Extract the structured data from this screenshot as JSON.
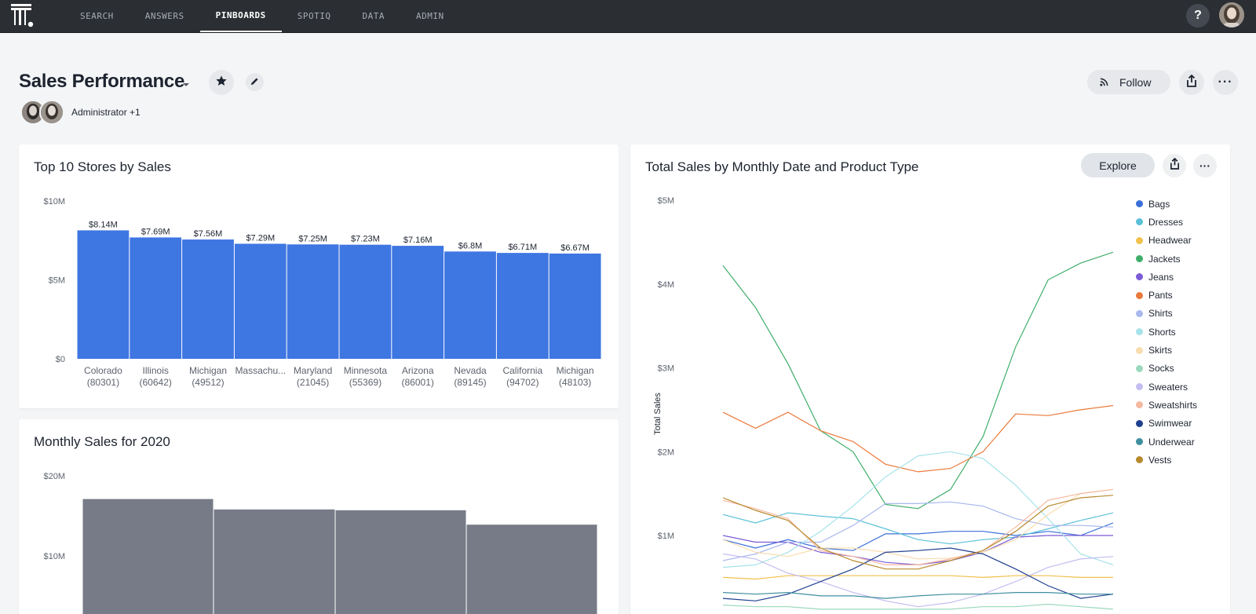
{
  "nav": {
    "items": [
      {
        "label": "SEARCH",
        "active": false
      },
      {
        "label": "ANSWERS",
        "active": false
      },
      {
        "label": "PINBOARDS",
        "active": true
      },
      {
        "label": "SPOTIQ",
        "active": false
      },
      {
        "label": "DATA",
        "active": false
      },
      {
        "label": "ADMIN",
        "active": false
      }
    ],
    "help_label": "?"
  },
  "header": {
    "title": "Sales Performance",
    "authors_text": "Administrator +1",
    "follow_label": "Follow",
    "more_label": "···"
  },
  "cards": {
    "top_stores": {
      "title": "Top 10 Stores by Sales"
    },
    "monthly": {
      "title": "Monthly Sales for 2020"
    },
    "product": {
      "title": "Total Sales by Monthly Date and Product Type",
      "explore_label": "Explore",
      "more_label": "···"
    }
  },
  "colors": {
    "bar_blue": "#3e76e2",
    "bar_gray": "#767b87",
    "nav_bg": "#2b2e33",
    "page_bg": "#f4f5f7"
  },
  "chart_data": [
    {
      "id": "top_stores",
      "type": "bar",
      "title": "Top 10 Stores by Sales",
      "categories": [
        [
          "Colorado",
          "(80301)"
        ],
        [
          "Illinois",
          "(60642)"
        ],
        [
          "Michigan",
          "(49512)"
        ],
        [
          "Massachu...",
          ""
        ],
        [
          "Maryland",
          "(21045)"
        ],
        [
          "Minnesota",
          "(55369)"
        ],
        [
          "Arizona",
          "(86001)"
        ],
        [
          "Nevada",
          "(89145)"
        ],
        [
          "California",
          "(94702)"
        ],
        [
          "Michigan",
          "(48103)"
        ]
      ],
      "values": [
        8.14,
        7.69,
        7.56,
        7.29,
        7.25,
        7.23,
        7.16,
        6.8,
        6.71,
        6.67
      ],
      "data_labels": [
        "$8.14M",
        "$7.69M",
        "$7.56M",
        "$7.29M",
        "$7.25M",
        "$7.23M",
        "$7.16M",
        "$6.8M",
        "$6.71M",
        "$6.67M"
      ],
      "unit": "millions USD",
      "ylim": [
        0,
        10
      ],
      "yticks": [
        {
          "value": 0,
          "label": "$0"
        },
        {
          "value": 5,
          "label": "$5M"
        },
        {
          "value": 10,
          "label": "$10M"
        }
      ],
      "color": "#3e76e2",
      "grid": false
    },
    {
      "id": "monthly",
      "type": "bar",
      "title": "Monthly Sales for 2020",
      "values": [
        17.1,
        15.8,
        15.7,
        13.9
      ],
      "unit": "millions USD",
      "ylim": [
        0,
        20
      ],
      "yticks": [
        {
          "value": 10,
          "label": "$10M"
        },
        {
          "value": 20,
          "label": "$20M"
        }
      ],
      "color": "#767b87",
      "grid": false
    },
    {
      "id": "product",
      "type": "line",
      "title": "Total Sales by Monthly Date and Product Type",
      "ylabel": "Total Sales",
      "unit": "millions USD",
      "ylim": [
        0,
        5
      ],
      "yticks": [
        {
          "value": 1,
          "label": "$1M"
        },
        {
          "value": 2,
          "label": "$2M"
        },
        {
          "value": 3,
          "label": "$3M"
        },
        {
          "value": 4,
          "label": "$4M"
        },
        {
          "value": 5,
          "label": "$5M"
        }
      ],
      "legend": "right",
      "series": [
        {
          "name": "Bags",
          "color": "#3a6fd8",
          "values": [
            0.95,
            0.85,
            0.95,
            0.85,
            0.82,
            1.02,
            1.02,
            1.05,
            1.05,
            1.0,
            1.05,
            1.0,
            1.15
          ]
        },
        {
          "name": "Dresses",
          "color": "#5bc0d8",
          "values": [
            1.25,
            1.15,
            1.27,
            1.23,
            1.2,
            1.08,
            0.95,
            0.9,
            0.95,
            0.98,
            1.08,
            1.18,
            1.27
          ]
        },
        {
          "name": "Headwear",
          "color": "#f2c14e",
          "values": [
            0.5,
            0.48,
            0.52,
            0.52,
            0.52,
            0.52,
            0.52,
            0.52,
            0.5,
            0.52,
            0.52,
            0.5,
            0.5
          ]
        },
        {
          "name": "Jackets",
          "color": "#3fae6a",
          "values": [
            4.22,
            3.72,
            3.05,
            2.25,
            2.0,
            1.37,
            1.32,
            1.55,
            2.18,
            3.25,
            4.05,
            4.25,
            4.38
          ]
        },
        {
          "name": "Jeans",
          "color": "#7a5bd6",
          "values": [
            1.0,
            0.92,
            0.92,
            0.8,
            0.75,
            0.68,
            0.65,
            0.7,
            0.8,
            0.98,
            1.0,
            1.0,
            1.0
          ]
        },
        {
          "name": "Pants",
          "color": "#ea7a3c",
          "values": [
            2.47,
            2.28,
            2.47,
            2.25,
            2.12,
            1.85,
            1.76,
            1.8,
            2.0,
            2.45,
            2.43,
            2.5,
            2.55
          ]
        },
        {
          "name": "Shirts",
          "color": "#a9b9ee",
          "values": [
            0.7,
            0.78,
            0.92,
            0.92,
            1.12,
            1.38,
            1.38,
            1.4,
            1.35,
            1.2,
            1.12,
            1.12,
            1.1
          ]
        },
        {
          "name": "Shorts",
          "color": "#a6e3ea",
          "values": [
            0.62,
            0.65,
            0.8,
            1.05,
            1.35,
            1.7,
            1.95,
            2.0,
            1.92,
            1.6,
            1.2,
            0.78,
            0.65
          ]
        },
        {
          "name": "Skirts",
          "color": "#f8ddb0",
          "values": [
            0.95,
            0.8,
            0.75,
            0.85,
            0.85,
            0.8,
            0.72,
            0.73,
            0.8,
            0.95,
            1.25,
            1.5,
            1.55
          ]
        },
        {
          "name": "Socks",
          "color": "#9bd9bd",
          "values": [
            0.17,
            0.15,
            0.15,
            0.12,
            0.12,
            0.12,
            0.12,
            0.12,
            0.15,
            0.15,
            0.18,
            0.15,
            0.12
          ]
        },
        {
          "name": "Sweaters",
          "color": "#c3bdf0",
          "values": [
            0.78,
            0.72,
            0.55,
            0.45,
            0.32,
            0.22,
            0.15,
            0.2,
            0.3,
            0.45,
            0.62,
            0.72,
            0.75
          ]
        },
        {
          "name": "Sweatshirts",
          "color": "#f6b8a0",
          "values": [
            1.42,
            1.32,
            1.2,
            0.82,
            0.75,
            0.65,
            0.65,
            0.72,
            0.82,
            1.1,
            1.42,
            1.5,
            1.55
          ]
        },
        {
          "name": "Swimwear",
          "color": "#1f3f8f",
          "values": [
            0.25,
            0.22,
            0.3,
            0.45,
            0.6,
            0.8,
            0.82,
            0.85,
            0.78,
            0.6,
            0.4,
            0.25,
            0.3
          ]
        },
        {
          "name": "Underwear",
          "color": "#3f8f9f",
          "values": [
            0.32,
            0.3,
            0.32,
            0.28,
            0.28,
            0.25,
            0.28,
            0.3,
            0.3,
            0.32,
            0.32,
            0.3,
            0.3
          ]
        },
        {
          "name": "Vests",
          "color": "#b88a2e",
          "values": [
            1.45,
            1.3,
            1.18,
            0.85,
            0.7,
            0.6,
            0.6,
            0.7,
            0.82,
            1.05,
            1.35,
            1.45,
            1.48
          ]
        }
      ]
    }
  ]
}
